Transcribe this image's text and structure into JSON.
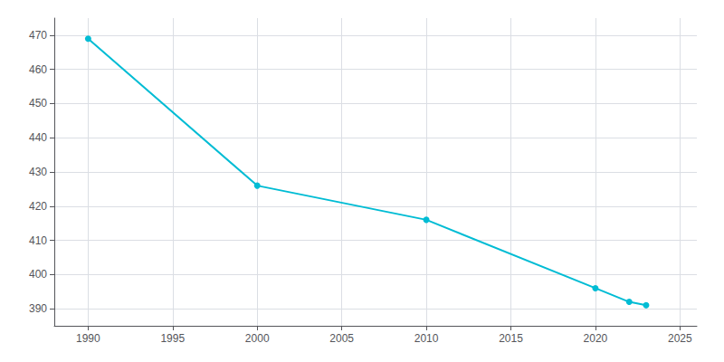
{
  "chart_data": {
    "type": "line",
    "x": [
      1990,
      2000,
      2010,
      2020,
      2022,
      2023
    ],
    "values": [
      469,
      426,
      416,
      396,
      392,
      391
    ],
    "color": "#00bcd4",
    "marker": "circle",
    "xlim": [
      1988,
      2026
    ],
    "xticks": [
      1990,
      1995,
      2000,
      2005,
      2010,
      2015,
      2020,
      2025
    ],
    "ylim": [
      385,
      475
    ],
    "yticks": [
      390,
      400,
      410,
      420,
      430,
      440,
      450,
      460,
      470
    ],
    "grid": true
  }
}
